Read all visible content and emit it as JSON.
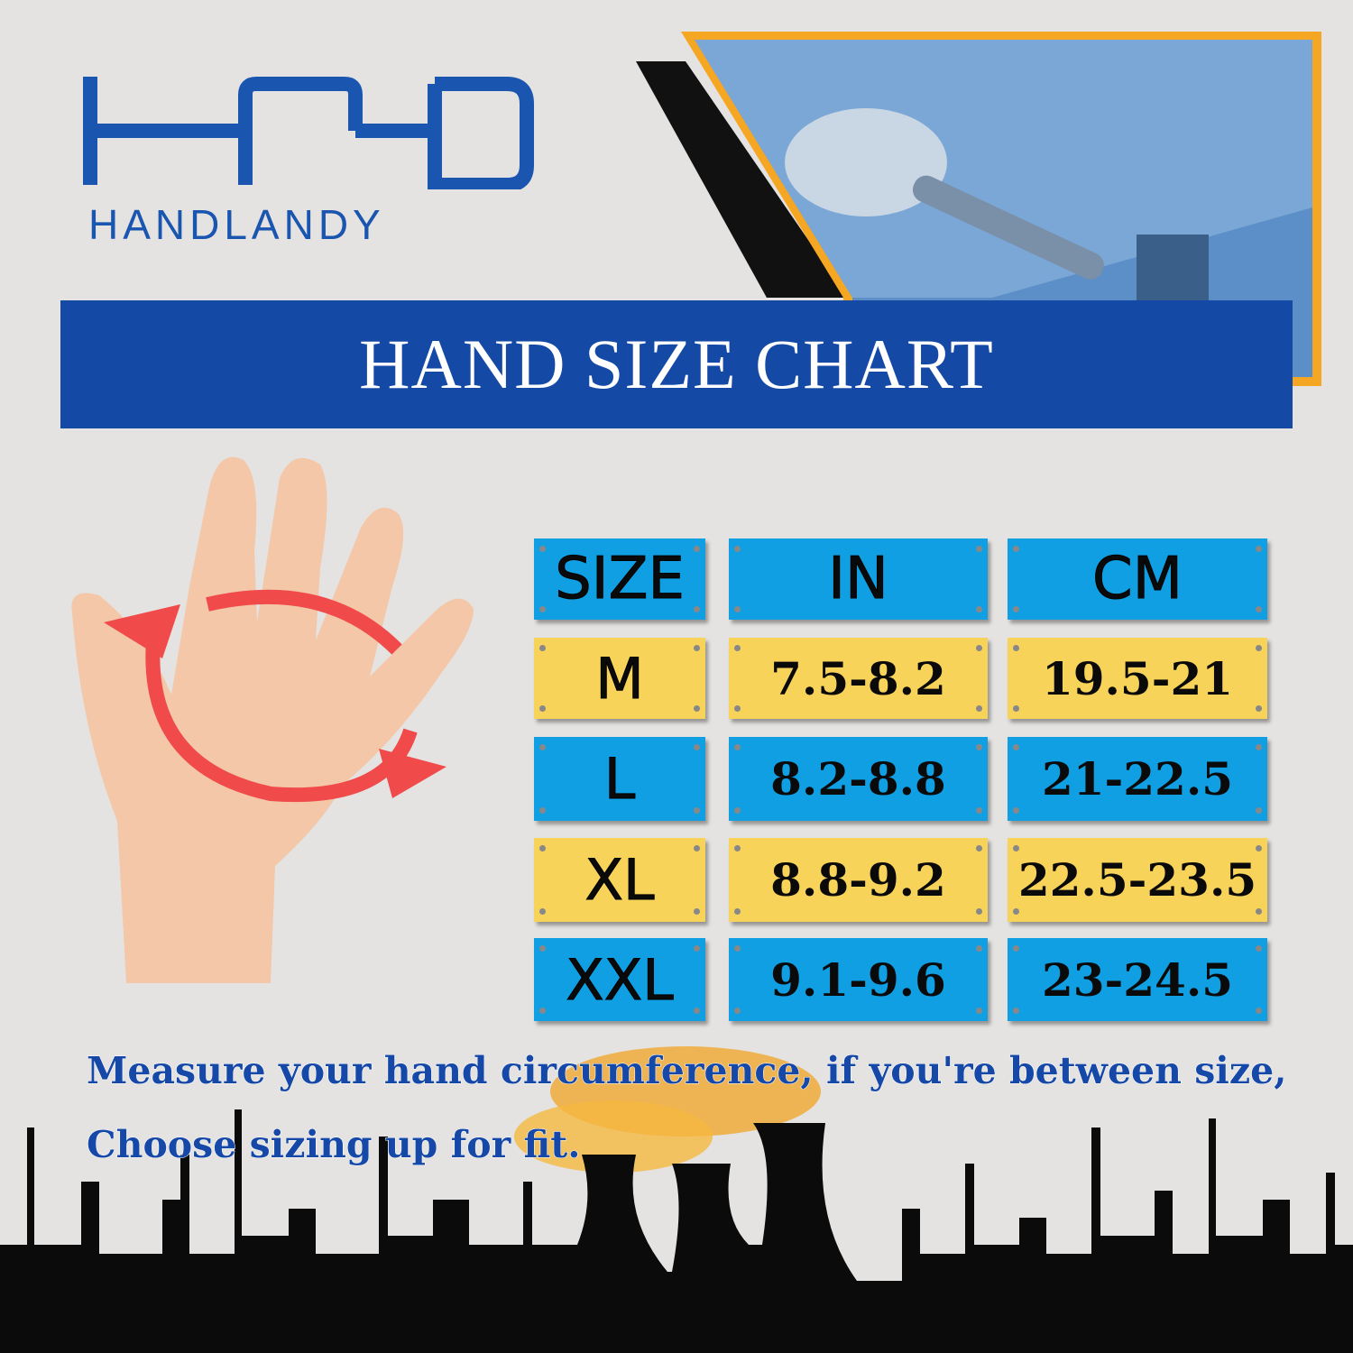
{
  "brand": {
    "logo_text": "HOLD",
    "name": "HANDLANDY",
    "color": "#1a55b0"
  },
  "banner": {
    "title": "HAND SIZE CHART",
    "color": "#1549a6"
  },
  "size_table": {
    "headers": [
      "SIZE",
      "IN",
      "CM"
    ],
    "rows": [
      {
        "size": "M",
        "in": "7.5-8.2",
        "cm": "19.5-21"
      },
      {
        "size": "L",
        "in": "8.2-8.8",
        "cm": "21-22.5"
      },
      {
        "size": "XL",
        "in": "8.8-9.2",
        "cm": "22.5-23.5"
      },
      {
        "size": "XXL",
        "in": "9.1-9.6",
        "cm": "23-24.5"
      }
    ],
    "colors": {
      "blue": "#119fe3",
      "yellow": "#f8d35a"
    }
  },
  "note": {
    "line1": "Measure your hand circumference, if you're between size,",
    "line2": "Choose sizing up for fit."
  }
}
